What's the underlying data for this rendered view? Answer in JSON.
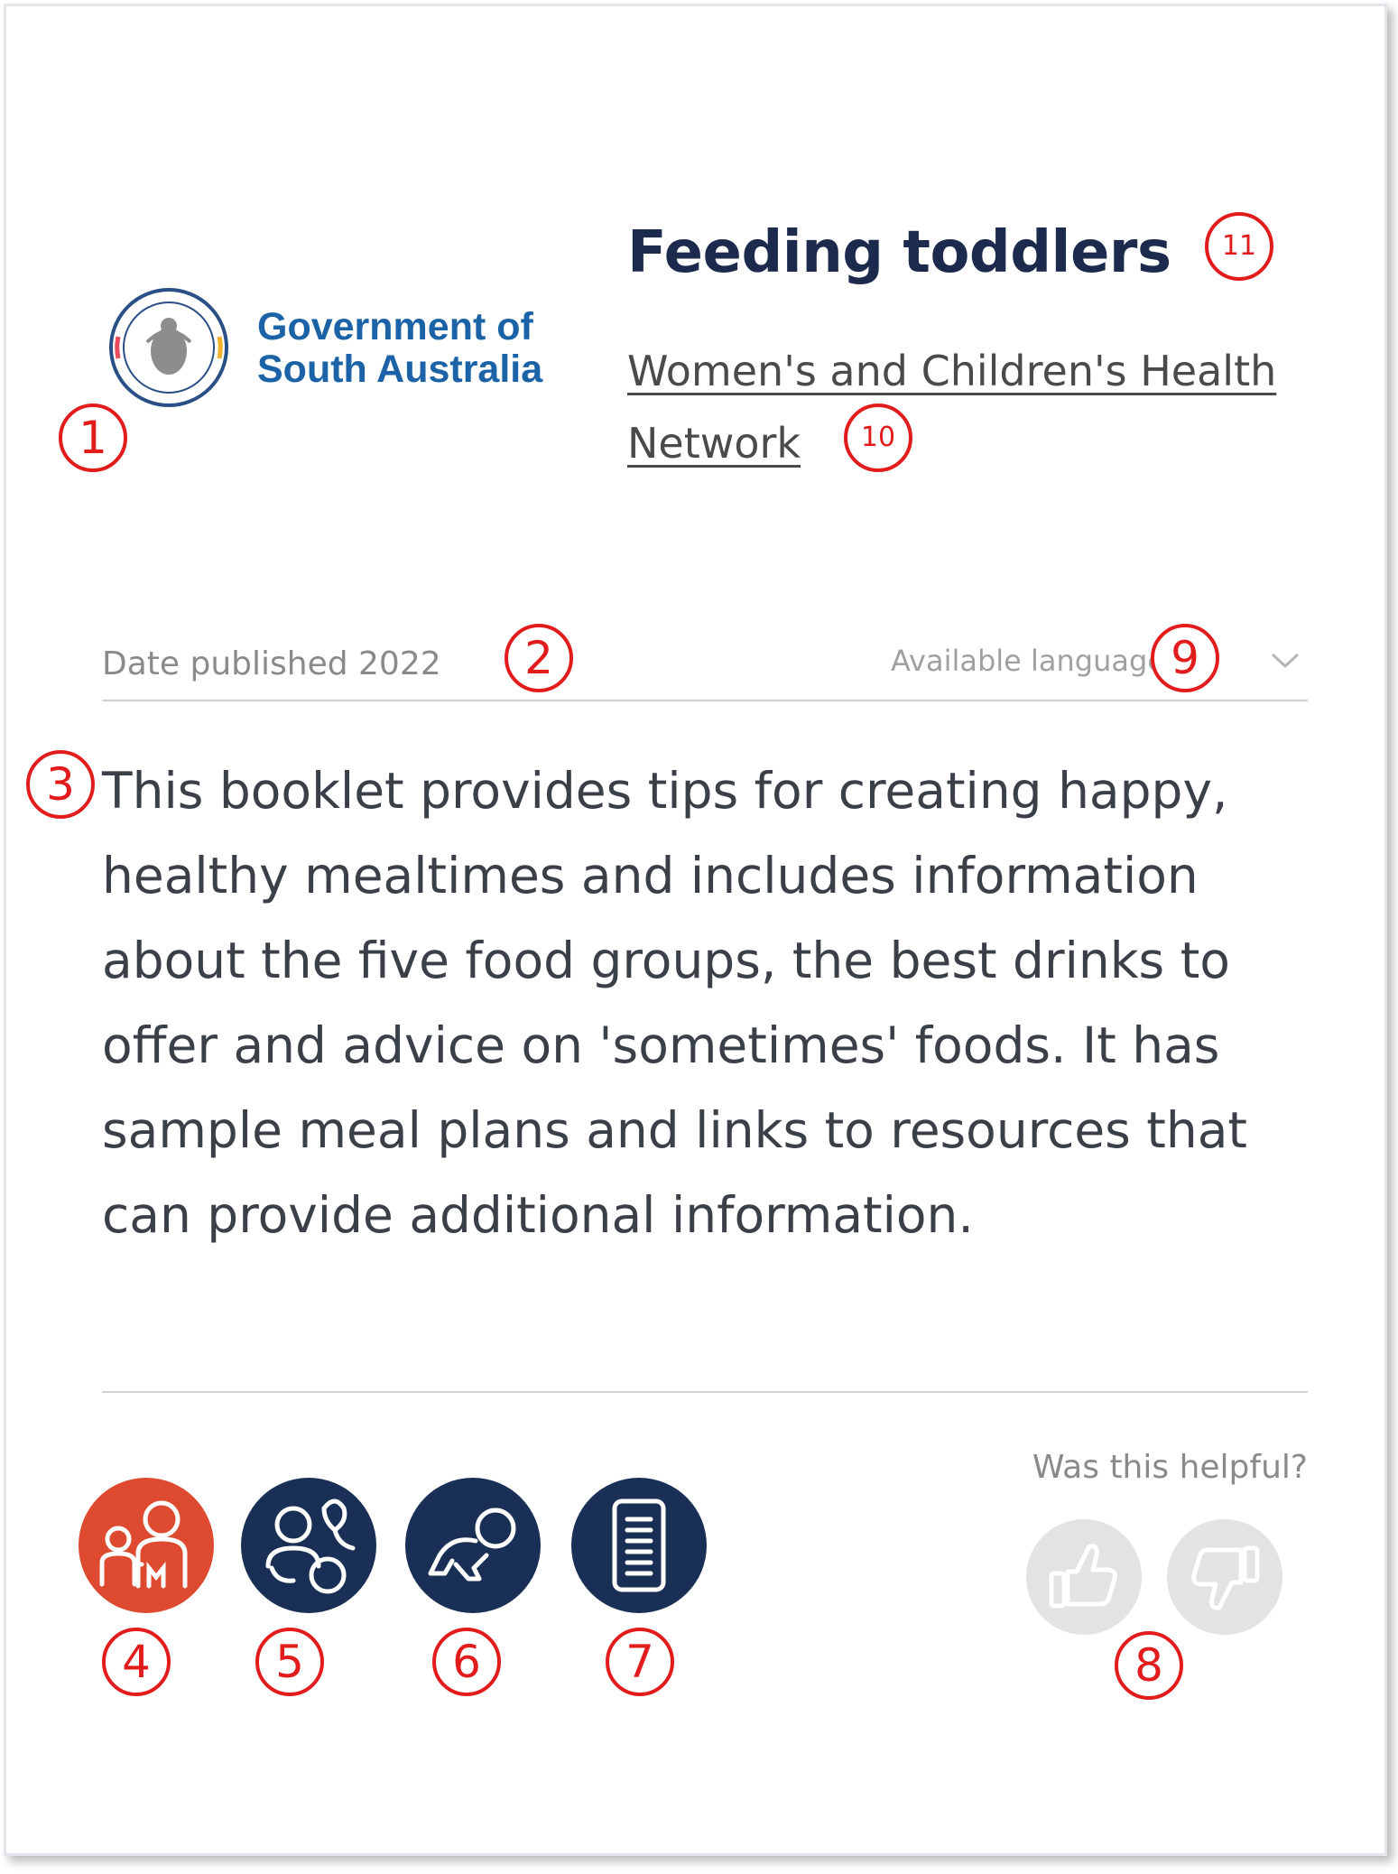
{
  "logo": {
    "line1": "Government of",
    "line2": "South Australia"
  },
  "header": {
    "title": "Feeding toddlers",
    "organisation": "Women's and Children's Health Network"
  },
  "meta": {
    "date_published": "Date published 2022",
    "languages_label": "Available languages"
  },
  "description": "This booklet provides tips for creating happy, healthy mealtimes and includes information about the five food groups, the best drinks to offer and advice on 'sometimes' foods. It has sample meal plans and links to resources that can provide additional information.",
  "feedback": {
    "question": "Was this helpful?"
  },
  "colors": {
    "title": "#1c2b4d",
    "logo_text": "#1b63a6",
    "tag_primary": "#dd4a2f",
    "tag_secondary": "#1a2f55",
    "annotation": "#e21c1c",
    "feedback_inactive": "#e3e3e3"
  },
  "icons": {
    "logo": "sa-government-crest",
    "tags": [
      "parent-and-child-icon",
      "baby-and-toddler-icon",
      "crawling-baby-icon",
      "booklet-document-icon"
    ],
    "languages": "chevron-down-icon",
    "feedback": [
      "thumbs-up-icon",
      "thumbs-down-icon"
    ]
  },
  "annotations": [
    "1",
    "2",
    "3",
    "4",
    "5",
    "6",
    "7",
    "8",
    "9",
    "10",
    "11"
  ]
}
